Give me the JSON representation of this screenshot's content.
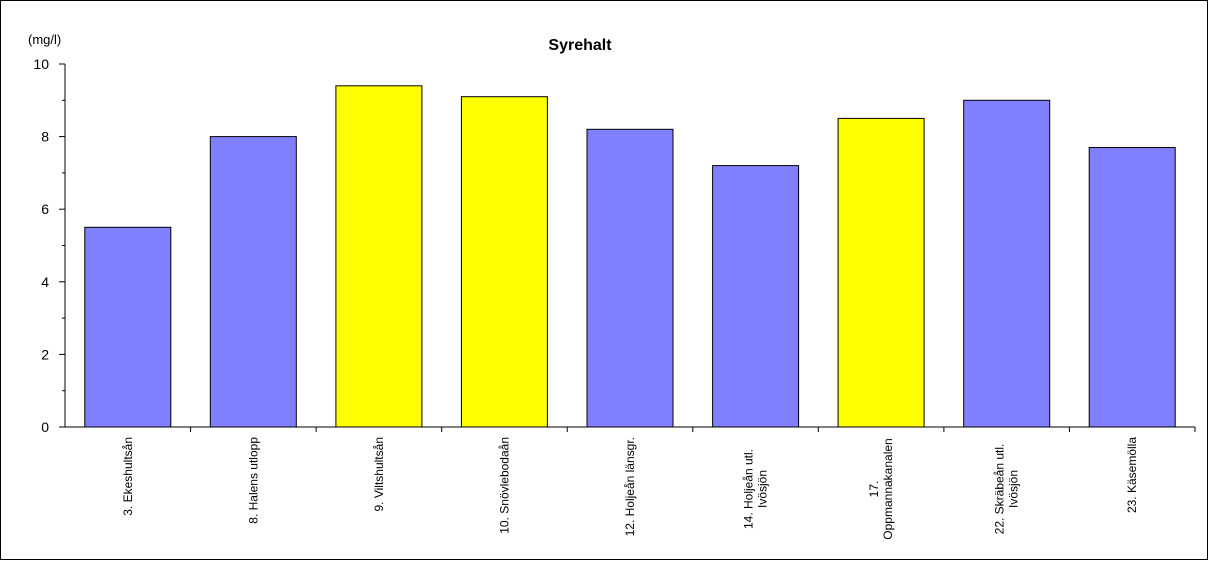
{
  "chart_data": {
    "type": "bar",
    "title": "Syrehalt",
    "unit_label": "(mg/l)",
    "ylim": [
      0,
      10
    ],
    "yticks": [
      0,
      2,
      4,
      6,
      8,
      10
    ],
    "categories": [
      "3. Ekeshultsån",
      "8. Halens utlopp",
      "9. Viltshultsån",
      "10. Snövlebodaån",
      "12. Holjeån länsgr.",
      "14. Holjeån utl. Ivösjön",
      "17. Oppmannakanalen",
      "22. Skräbeån utl. Ivösjön",
      "23. Käsemölla"
    ],
    "values": [
      5.5,
      8.0,
      9.4,
      9.1,
      8.2,
      7.2,
      8.5,
      9.0,
      7.7
    ],
    "highlight": [
      false,
      false,
      true,
      true,
      false,
      false,
      true,
      false,
      false
    ],
    "grid": false,
    "legend": "none",
    "colors": {
      "default": "#8080ff",
      "highlight": "#ffff00",
      "outline": "#000000"
    }
  }
}
